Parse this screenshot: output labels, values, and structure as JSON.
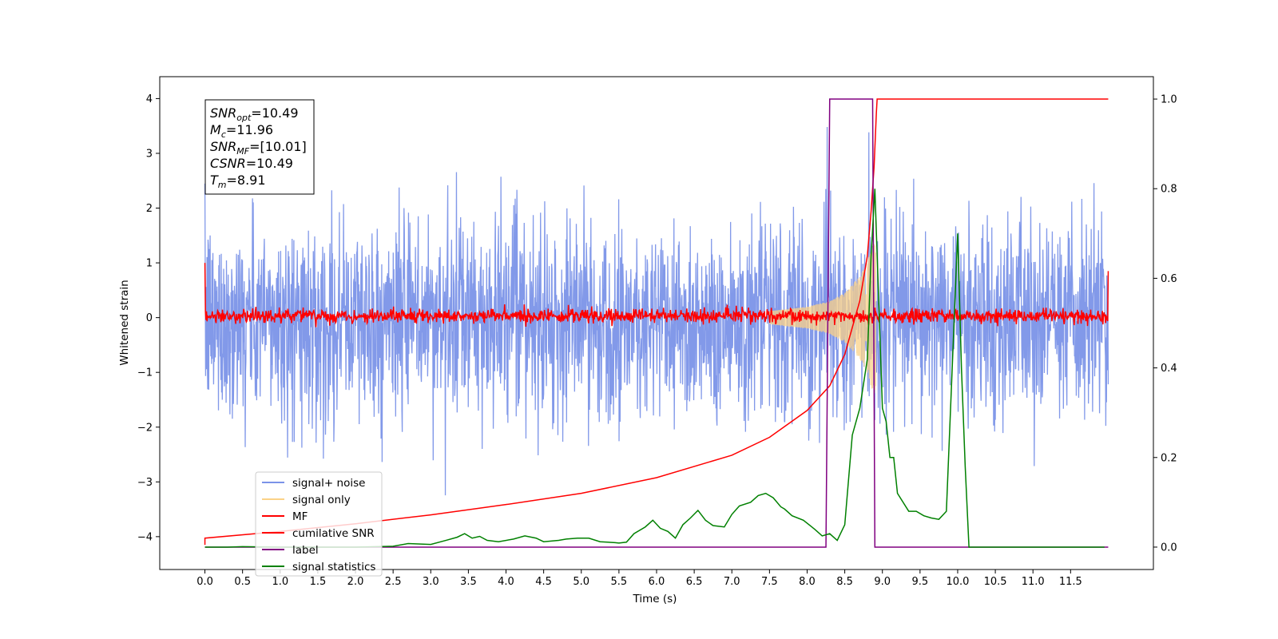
{
  "chart_data": {
    "type": "line",
    "xlabel": "Time (s)",
    "ylabel": "Whitened strain",
    "xlim": [
      -0.6,
      12.6
    ],
    "ylim": [
      -4.6,
      4.4
    ],
    "y2lim": [
      -0.05,
      1.05
    ],
    "x_ticks": [
      "0.0",
      "0.5",
      "1.0",
      "1.5",
      "2.0",
      "2.5",
      "3.0",
      "3.5",
      "4.0",
      "4.5",
      "5.0",
      "5.5",
      "6.0",
      "6.5",
      "7.0",
      "7.5",
      "8.0",
      "8.5",
      "9.0",
      "9.5",
      "10.0",
      "10.5",
      "11.0",
      "11.5"
    ],
    "y_ticks": [
      "4",
      "3",
      "2",
      "1",
      "0",
      "−1",
      "−2",
      "−3",
      "−4"
    ],
    "y2_ticks": [
      "1.0",
      "0.8",
      "0.6",
      "0.4",
      "0.2",
      "0.0"
    ],
    "grid": false,
    "legend_position": "lower-left",
    "annotation": {
      "lines": [
        {
          "sym": "SNR",
          "sub": "opt",
          "val": "=10.49"
        },
        {
          "sym": "M",
          "sub": "c",
          "val": "=11.96"
        },
        {
          "sym": "SNR",
          "sub": "MF",
          "val": "=[10.01]"
        },
        {
          "sym": "CSNR",
          "sub": "",
          "val": "=10.49"
        },
        {
          "sym": "T",
          "sub": "m",
          "val": "=8.91"
        }
      ]
    },
    "series": [
      {
        "name": "signal+ noise",
        "color": "#7b93e8",
        "axis": "left",
        "style": "dense noise, std 0.9, t 0–12, near-zero mean, spikes to ±3.5"
      },
      {
        "name": "signal only",
        "color": "#fbd287",
        "axis": "left",
        "style": "chirp envelope growing from ~7.5 s to 8.91 s, peak amplitude ~1.4",
        "envelope": [
          [
            7.5,
            0.12
          ],
          [
            8.0,
            0.2
          ],
          [
            8.3,
            0.3
          ],
          [
            8.5,
            0.45
          ],
          [
            8.7,
            0.75
          ],
          [
            8.8,
            1.0
          ],
          [
            8.87,
            1.35
          ],
          [
            8.91,
            1.4
          ]
        ]
      },
      {
        "name": "MF",
        "color": "#ff0000",
        "axis": "left",
        "style": "noise around 0, std 0.06, t 0–12, spike to 1.0 at t=0 and 0.85 at t=12"
      },
      {
        "name": "cumilative SNR",
        "color": "#ff0000",
        "axis": "right",
        "points": [
          [
            0.0,
            0.005
          ],
          [
            0.0,
            0.02
          ],
          [
            1.0,
            0.035
          ],
          [
            2.0,
            0.052
          ],
          [
            3.0,
            0.072
          ],
          [
            4.0,
            0.095
          ],
          [
            5.0,
            0.12
          ],
          [
            6.0,
            0.155
          ],
          [
            7.0,
            0.205
          ],
          [
            7.5,
            0.245
          ],
          [
            8.0,
            0.305
          ],
          [
            8.3,
            0.36
          ],
          [
            8.5,
            0.43
          ],
          [
            8.7,
            0.55
          ],
          [
            8.8,
            0.65
          ],
          [
            8.85,
            0.75
          ],
          [
            8.89,
            0.85
          ],
          [
            8.92,
            0.97
          ],
          [
            8.93,
            1.0
          ],
          [
            12.0,
            1.0
          ]
        ]
      },
      {
        "name": "label",
        "color": "#800080",
        "axis": "right",
        "points": [
          [
            0.0,
            0.0
          ],
          [
            8.25,
            0.0
          ],
          [
            8.3,
            1.0
          ],
          [
            8.87,
            1.0
          ],
          [
            8.9,
            0.0
          ],
          [
            12.0,
            0.0
          ]
        ]
      },
      {
        "name": "signal statistics",
        "color": "#008000",
        "axis": "right",
        "points": [
          [
            0.0,
            0.0
          ],
          [
            0.3,
            0.0
          ],
          [
            0.5,
            0.001
          ],
          [
            1.0,
            0.0
          ],
          [
            1.5,
            0.0
          ],
          [
            2.0,
            0.0
          ],
          [
            2.5,
            0.002
          ],
          [
            2.7,
            0.008
          ],
          [
            3.0,
            0.006
          ],
          [
            3.2,
            0.015
          ],
          [
            3.35,
            0.022
          ],
          [
            3.45,
            0.03
          ],
          [
            3.55,
            0.02
          ],
          [
            3.65,
            0.024
          ],
          [
            3.75,
            0.015
          ],
          [
            3.9,
            0.012
          ],
          [
            4.1,
            0.018
          ],
          [
            4.25,
            0.025
          ],
          [
            4.4,
            0.02
          ],
          [
            4.5,
            0.012
          ],
          [
            4.7,
            0.015
          ],
          [
            4.8,
            0.018
          ],
          [
            4.95,
            0.02
          ],
          [
            5.1,
            0.02
          ],
          [
            5.25,
            0.012
          ],
          [
            5.45,
            0.01
          ],
          [
            5.5,
            0.009
          ],
          [
            5.6,
            0.011
          ],
          [
            5.7,
            0.03
          ],
          [
            5.85,
            0.045
          ],
          [
            5.95,
            0.06
          ],
          [
            6.05,
            0.042
          ],
          [
            6.15,
            0.035
          ],
          [
            6.25,
            0.02
          ],
          [
            6.35,
            0.05
          ],
          [
            6.45,
            0.065
          ],
          [
            6.55,
            0.082
          ],
          [
            6.65,
            0.06
          ],
          [
            6.75,
            0.048
          ],
          [
            6.9,
            0.045
          ],
          [
            7.0,
            0.073
          ],
          [
            7.1,
            0.092
          ],
          [
            7.25,
            0.1
          ],
          [
            7.35,
            0.115
          ],
          [
            7.45,
            0.12
          ],
          [
            7.55,
            0.11
          ],
          [
            7.65,
            0.09
          ],
          [
            7.7,
            0.085
          ],
          [
            7.8,
            0.07
          ],
          [
            7.95,
            0.06
          ],
          [
            8.1,
            0.04
          ],
          [
            8.2,
            0.025
          ],
          [
            8.3,
            0.03
          ],
          [
            8.4,
            0.015
          ],
          [
            8.5,
            0.05
          ],
          [
            8.6,
            0.25
          ],
          [
            8.7,
            0.31
          ],
          [
            8.8,
            0.42
          ],
          [
            8.85,
            0.65
          ],
          [
            8.9,
            0.8
          ],
          [
            9.0,
            0.31
          ],
          [
            9.05,
            0.28
          ],
          [
            9.1,
            0.2
          ],
          [
            9.15,
            0.2
          ],
          [
            9.2,
            0.12
          ],
          [
            9.35,
            0.08
          ],
          [
            9.45,
            0.08
          ],
          [
            9.55,
            0.07
          ],
          [
            9.65,
            0.065
          ],
          [
            9.75,
            0.062
          ],
          [
            9.85,
            0.08
          ],
          [
            10.0,
            0.7
          ],
          [
            10.05,
            0.4
          ],
          [
            10.1,
            0.18
          ],
          [
            10.15,
            0.0
          ],
          [
            10.25,
            0.0
          ],
          [
            10.35,
            0.0
          ],
          [
            10.45,
            0.0
          ],
          [
            10.55,
            0.0
          ],
          [
            10.65,
            0.0
          ],
          [
            10.75,
            0.0
          ],
          [
            10.85,
            0.0
          ],
          [
            10.95,
            0.0
          ],
          [
            11.05,
            0.0
          ],
          [
            11.15,
            0.0
          ],
          [
            11.25,
            0.0
          ],
          [
            11.35,
            0.0
          ],
          [
            11.45,
            0.0
          ],
          [
            11.55,
            0.0
          ],
          [
            11.65,
            0.0
          ],
          [
            11.75,
            0.0
          ],
          [
            11.85,
            0.0
          ],
          [
            11.95,
            0.0
          ]
        ]
      }
    ]
  }
}
